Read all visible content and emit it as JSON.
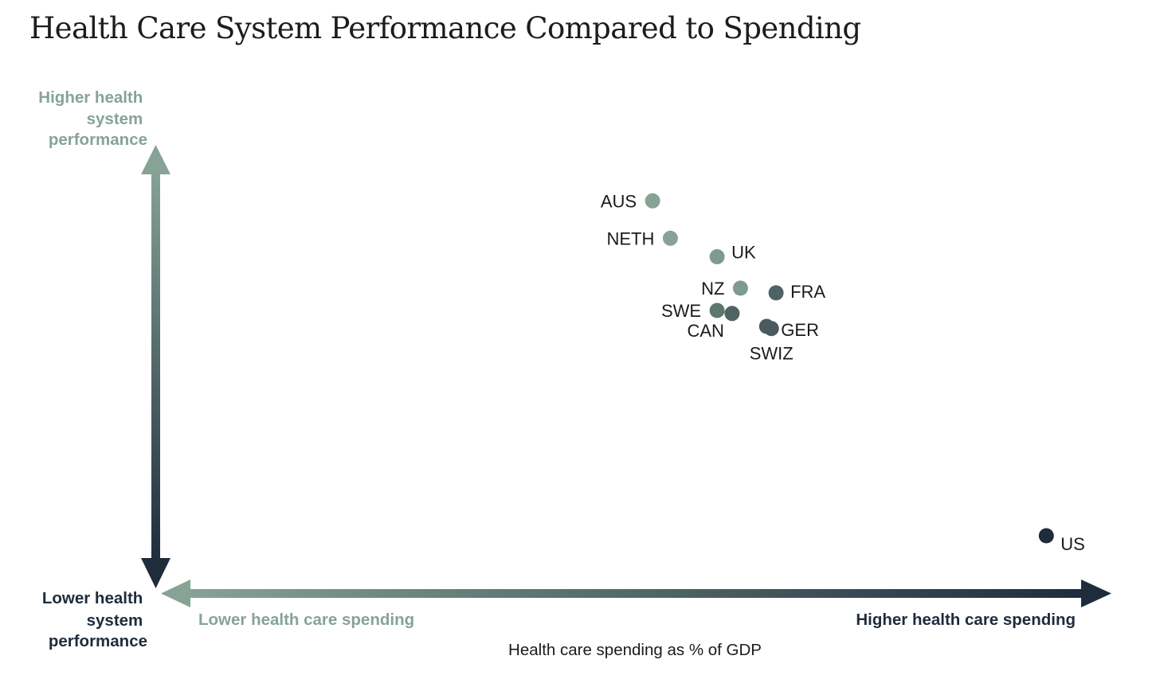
{
  "chart_data": {
    "type": "scatter",
    "title": "Health Care System Performance Compared to Spending",
    "xlabel": "Health care spending as % of GDP",
    "y_axis_top_label": [
      "Higher health",
      "system",
      "performance"
    ],
    "y_axis_bottom_label": [
      "Lower health",
      "system",
      "performance"
    ],
    "x_axis_left_label": "Lower health care spending",
    "x_axis_right_label": "Higher health care spending",
    "xlim": [
      0,
      100
    ],
    "ylim": [
      0,
      100
    ],
    "points": [
      {
        "label": "AUS",
        "x": 51.2,
        "y": 87.9,
        "label_side": "left",
        "color": "#86a396"
      },
      {
        "label": "NETH",
        "x": 53.1,
        "y": 79.2,
        "label_side": "left",
        "color": "#86a396"
      },
      {
        "label": "UK",
        "x": 58.1,
        "y": 74.9,
        "label_side": "right",
        "color": "#7d9b8f"
      },
      {
        "label": "NZ",
        "x": 60.6,
        "y": 67.6,
        "label_side": "left",
        "color": "#7d9b8f"
      },
      {
        "label": "FRA",
        "x": 64.4,
        "y": 66.5,
        "label_side": "right",
        "color": "#4f6364"
      },
      {
        "label": "SWE",
        "x": 58.1,
        "y": 62.4,
        "label_side": "left",
        "color": "#5d7670"
      },
      {
        "label": "CAN",
        "x": 59.7,
        "y": 61.7,
        "label_side": "below-left",
        "color": "#4f6364"
      },
      {
        "label": "GER",
        "x": 63.4,
        "y": 58.7,
        "label_side": "right",
        "color": "#4a5b5f"
      },
      {
        "label": "SWIZ",
        "x": 63.9,
        "y": 58.2,
        "label_side": "below",
        "color": "#4a5b5f"
      },
      {
        "label": "US",
        "x": 93.3,
        "y": 10.0,
        "label_side": "right",
        "color": "#1e2c3c"
      }
    ]
  },
  "colors": {
    "sage": "#86a396",
    "navy": "#1e2c3c",
    "title": "#1c1c1c"
  }
}
